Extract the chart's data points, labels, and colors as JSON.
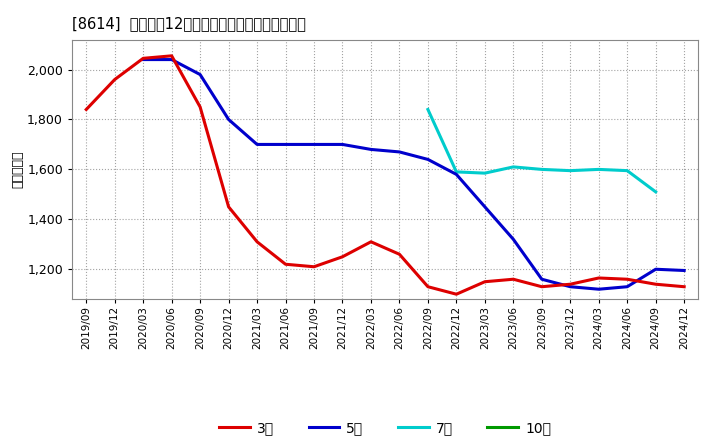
{
  "title": "[8614]  経常利益12か月移動合計の標準偏差の推移",
  "ylabel": "（百万円）",
  "background_color": "#ffffff",
  "plot_bg_color": "#ffffff",
  "grid_color": "#aaaaaa",
  "ylim": [
    1080,
    2120
  ],
  "yticks": [
    1200,
    1400,
    1600,
    1800,
    2000
  ],
  "legend_labels": [
    "3年",
    "5年",
    "7年",
    "10年"
  ],
  "legend_colors": [
    "#dd0000",
    "#0000cc",
    "#00cccc",
    "#009900"
  ],
  "x_labels": [
    "2019/09",
    "2019/12",
    "2020/03",
    "2020/06",
    "2020/09",
    "2020/12",
    "2021/03",
    "2021/06",
    "2021/09",
    "2021/12",
    "2022/03",
    "2022/06",
    "2022/09",
    "2022/12",
    "2023/03",
    "2023/06",
    "2023/09",
    "2023/12",
    "2024/03",
    "2024/06",
    "2024/09",
    "2024/12"
  ],
  "series_3y": [
    1840,
    1960,
    2045,
    2055,
    1850,
    1450,
    1310,
    1220,
    1210,
    1250,
    1310,
    1260,
    1130,
    1100,
    1150,
    1160,
    1130,
    1140,
    1165,
    1160,
    1140,
    1130
  ],
  "series_5y": [
    null,
    null,
    2040,
    2040,
    1980,
    1800,
    1700,
    1700,
    1700,
    1700,
    1680,
    1670,
    1640,
    1580,
    1450,
    1320,
    1160,
    1130,
    1120,
    1130,
    1200,
    1195
  ],
  "series_7y": [
    null,
    null,
    null,
    null,
    null,
    null,
    null,
    null,
    null,
    null,
    null,
    null,
    1840,
    1590,
    1585,
    1610,
    1600,
    1595,
    1600,
    1595,
    1510,
    null
  ],
  "series_10y": [
    null,
    null,
    null,
    null,
    null,
    null,
    null,
    null,
    null,
    null,
    null,
    null,
    null,
    null,
    null,
    null,
    null,
    null,
    null,
    null,
    null,
    null
  ]
}
